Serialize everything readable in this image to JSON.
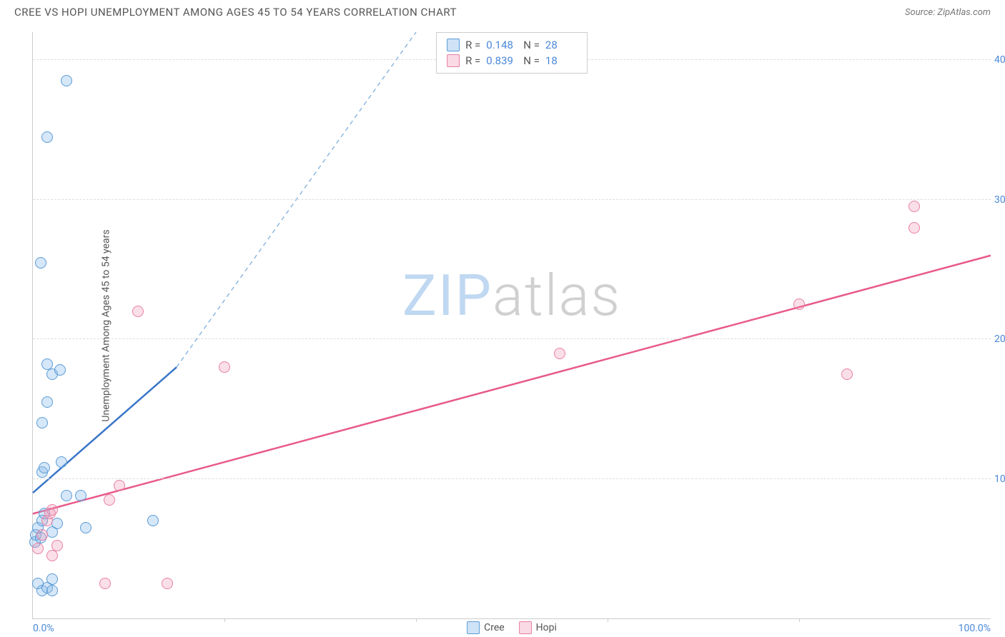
{
  "header": {
    "title": "CREE VS HOPI UNEMPLOYMENT AMONG AGES 45 TO 54 YEARS CORRELATION CHART",
    "source": "Source: ZipAtlas.com"
  },
  "chart": {
    "type": "scatter",
    "y_label": "Unemployment Among Ages 45 to 54 years",
    "xlim": [
      0,
      100
    ],
    "ylim": [
      0,
      42
    ],
    "x_ticks": [
      {
        "pos": 0,
        "label": "0.0%"
      },
      {
        "pos": 100,
        "label": "100.0%"
      }
    ],
    "x_minor_ticks": [
      20,
      40,
      60,
      80
    ],
    "y_ticks": [
      {
        "pos": 10,
        "label": "10.0%"
      },
      {
        "pos": 20,
        "label": "20.0%"
      },
      {
        "pos": 30,
        "label": "30.0%"
      },
      {
        "pos": 40,
        "label": "40.0%"
      }
    ],
    "background_color": "#ffffff",
    "grid_color": "#dddddd",
    "series": {
      "cree": {
        "color_fill": "rgba(135,185,235,0.35)",
        "color_stroke": "#5b9bd5",
        "points": [
          {
            "x": 0.2,
            "y": 5.5
          },
          {
            "x": 0.3,
            "y": 6.0
          },
          {
            "x": 0.5,
            "y": 6.5
          },
          {
            "x": 0.8,
            "y": 5.8
          },
          {
            "x": 1.0,
            "y": 10.5
          },
          {
            "x": 1.2,
            "y": 10.8
          },
          {
            "x": 1.0,
            "y": 2.0
          },
          {
            "x": 1.5,
            "y": 2.2
          },
          {
            "x": 2.0,
            "y": 2.0
          },
          {
            "x": 2.5,
            "y": 6.8
          },
          {
            "x": 3.5,
            "y": 8.8
          },
          {
            "x": 5.0,
            "y": 8.8
          },
          {
            "x": 3.0,
            "y": 11.2
          },
          {
            "x": 1.0,
            "y": 14.0
          },
          {
            "x": 1.5,
            "y": 15.5
          },
          {
            "x": 2.0,
            "y": 17.5
          },
          {
            "x": 2.8,
            "y": 17.8
          },
          {
            "x": 1.5,
            "y": 18.2
          },
          {
            "x": 0.8,
            "y": 25.5
          },
          {
            "x": 1.5,
            "y": 34.5
          },
          {
            "x": 3.5,
            "y": 38.5
          },
          {
            "x": 12.5,
            "y": 7.0
          },
          {
            "x": 5.5,
            "y": 6.5
          },
          {
            "x": 2.0,
            "y": 6.2
          },
          {
            "x": 1.0,
            "y": 7.0
          },
          {
            "x": 1.2,
            "y": 7.5
          },
          {
            "x": 0.5,
            "y": 2.5
          },
          {
            "x": 2.0,
            "y": 2.8
          }
        ],
        "trend": {
          "x1": 0,
          "y1": 9.0,
          "x2": 15,
          "y2": 18.0,
          "dash_x2": 40,
          "dash_y2": 42
        }
      },
      "hopi": {
        "color_fill": "rgba(240,150,180,0.3)",
        "color_stroke": "#e77fa3",
        "points": [
          {
            "x": 0.5,
            "y": 5.0
          },
          {
            "x": 1.0,
            "y": 6.0
          },
          {
            "x": 1.5,
            "y": 7.0
          },
          {
            "x": 1.8,
            "y": 7.5
          },
          {
            "x": 2.0,
            "y": 4.5
          },
          {
            "x": 2.5,
            "y": 5.2
          },
          {
            "x": 7.5,
            "y": 2.5
          },
          {
            "x": 14.0,
            "y": 2.5
          },
          {
            "x": 8.0,
            "y": 8.5
          },
          {
            "x": 9.0,
            "y": 9.5
          },
          {
            "x": 11.0,
            "y": 22.0
          },
          {
            "x": 20.0,
            "y": 18.0
          },
          {
            "x": 55.0,
            "y": 19.0
          },
          {
            "x": 85.0,
            "y": 17.5
          },
          {
            "x": 80.0,
            "y": 22.5
          },
          {
            "x": 92.0,
            "y": 28.0
          },
          {
            "x": 92.0,
            "y": 29.5
          },
          {
            "x": 2.0,
            "y": 7.8
          }
        ],
        "trend": {
          "x1": 0,
          "y1": 7.5,
          "x2": 100,
          "y2": 26.0
        }
      }
    },
    "legend_stats": {
      "cree": {
        "R_label": "R =",
        "R": "0.148",
        "N_label": "N =",
        "N": "28"
      },
      "hopi": {
        "R_label": "R =",
        "R": "0.839",
        "N_label": "N =",
        "N": "18"
      }
    },
    "bottom_legend": {
      "cree": "Cree",
      "hopi": "Hopi"
    },
    "watermark": {
      "zip": "ZIP",
      "atlas": "atlas"
    }
  }
}
